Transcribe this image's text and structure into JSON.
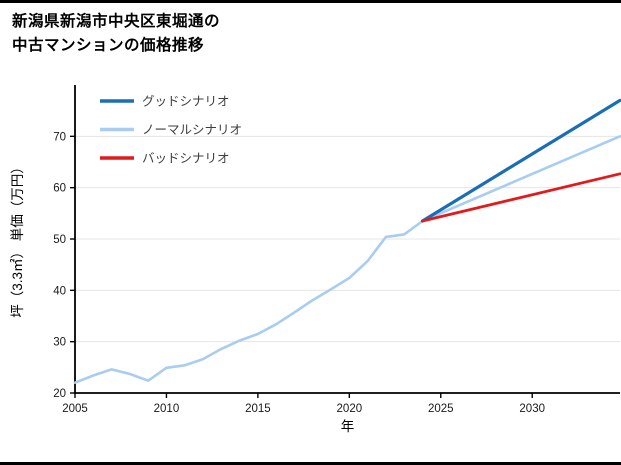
{
  "page": {
    "title_lines": [
      "新潟県新潟市中央区東堀通の",
      "中古マンションの価格推移"
    ]
  },
  "chart_data": {
    "type": "line",
    "title": "新潟県新潟市中央区東堀通の中古マンションの価格推移",
    "xlabel": "年",
    "ylabel": "坪（3.3㎡） 単価（万円）",
    "xlim": [
      2005,
      2034.8
    ],
    "ylim": [
      20,
      80
    ],
    "xticks": [
      2005,
      2010,
      2015,
      2020,
      2025,
      2030
    ],
    "yticks": [
      20,
      30,
      40,
      50,
      60,
      70
    ],
    "grid": "horizontal-only",
    "grid_color": "#e5e5e5",
    "axis_color": "#000000",
    "legend_position": "top-left-inside",
    "series": [
      {
        "id": "normal",
        "name": "ノーマルシナリオ",
        "color": "#a8cdf0",
        "width": 2.6,
        "x": [
          2005,
          2006,
          2007,
          2008,
          2009,
          2010,
          2011,
          2012,
          2013,
          2014,
          2015,
          2016,
          2017,
          2018,
          2019,
          2020,
          2021,
          2022,
          2023,
          2024,
          2034.8
        ],
        "y": [
          22.0,
          23.4,
          24.6,
          23.7,
          22.4,
          24.9,
          25.4,
          26.6,
          28.6,
          30.2,
          31.5,
          33.4,
          35.7,
          38.1,
          40.2,
          42.4,
          45.7,
          50.4,
          50.9,
          53.5,
          70.0
        ]
      },
      {
        "id": "good",
        "name": "グッドシナリオ",
        "color": "#1a6eb5",
        "width": 3.2,
        "x": [
          2024,
          2034.8
        ],
        "y": [
          53.5,
          77.0
        ]
      },
      {
        "id": "bad",
        "name": "バッドシナリオ",
        "color": "#e31a1c",
        "width": 2.8,
        "x": [
          2024,
          2034.8
        ],
        "y": [
          53.5,
          62.7
        ]
      }
    ],
    "legend": [
      {
        "label": "グッドシナリオ",
        "color": "#1a6eb5"
      },
      {
        "label": "ノーマルシナリオ",
        "color": "#a8cdf0"
      },
      {
        "label": "バッドシナリオ",
        "color": "#e31a1c"
      }
    ]
  }
}
